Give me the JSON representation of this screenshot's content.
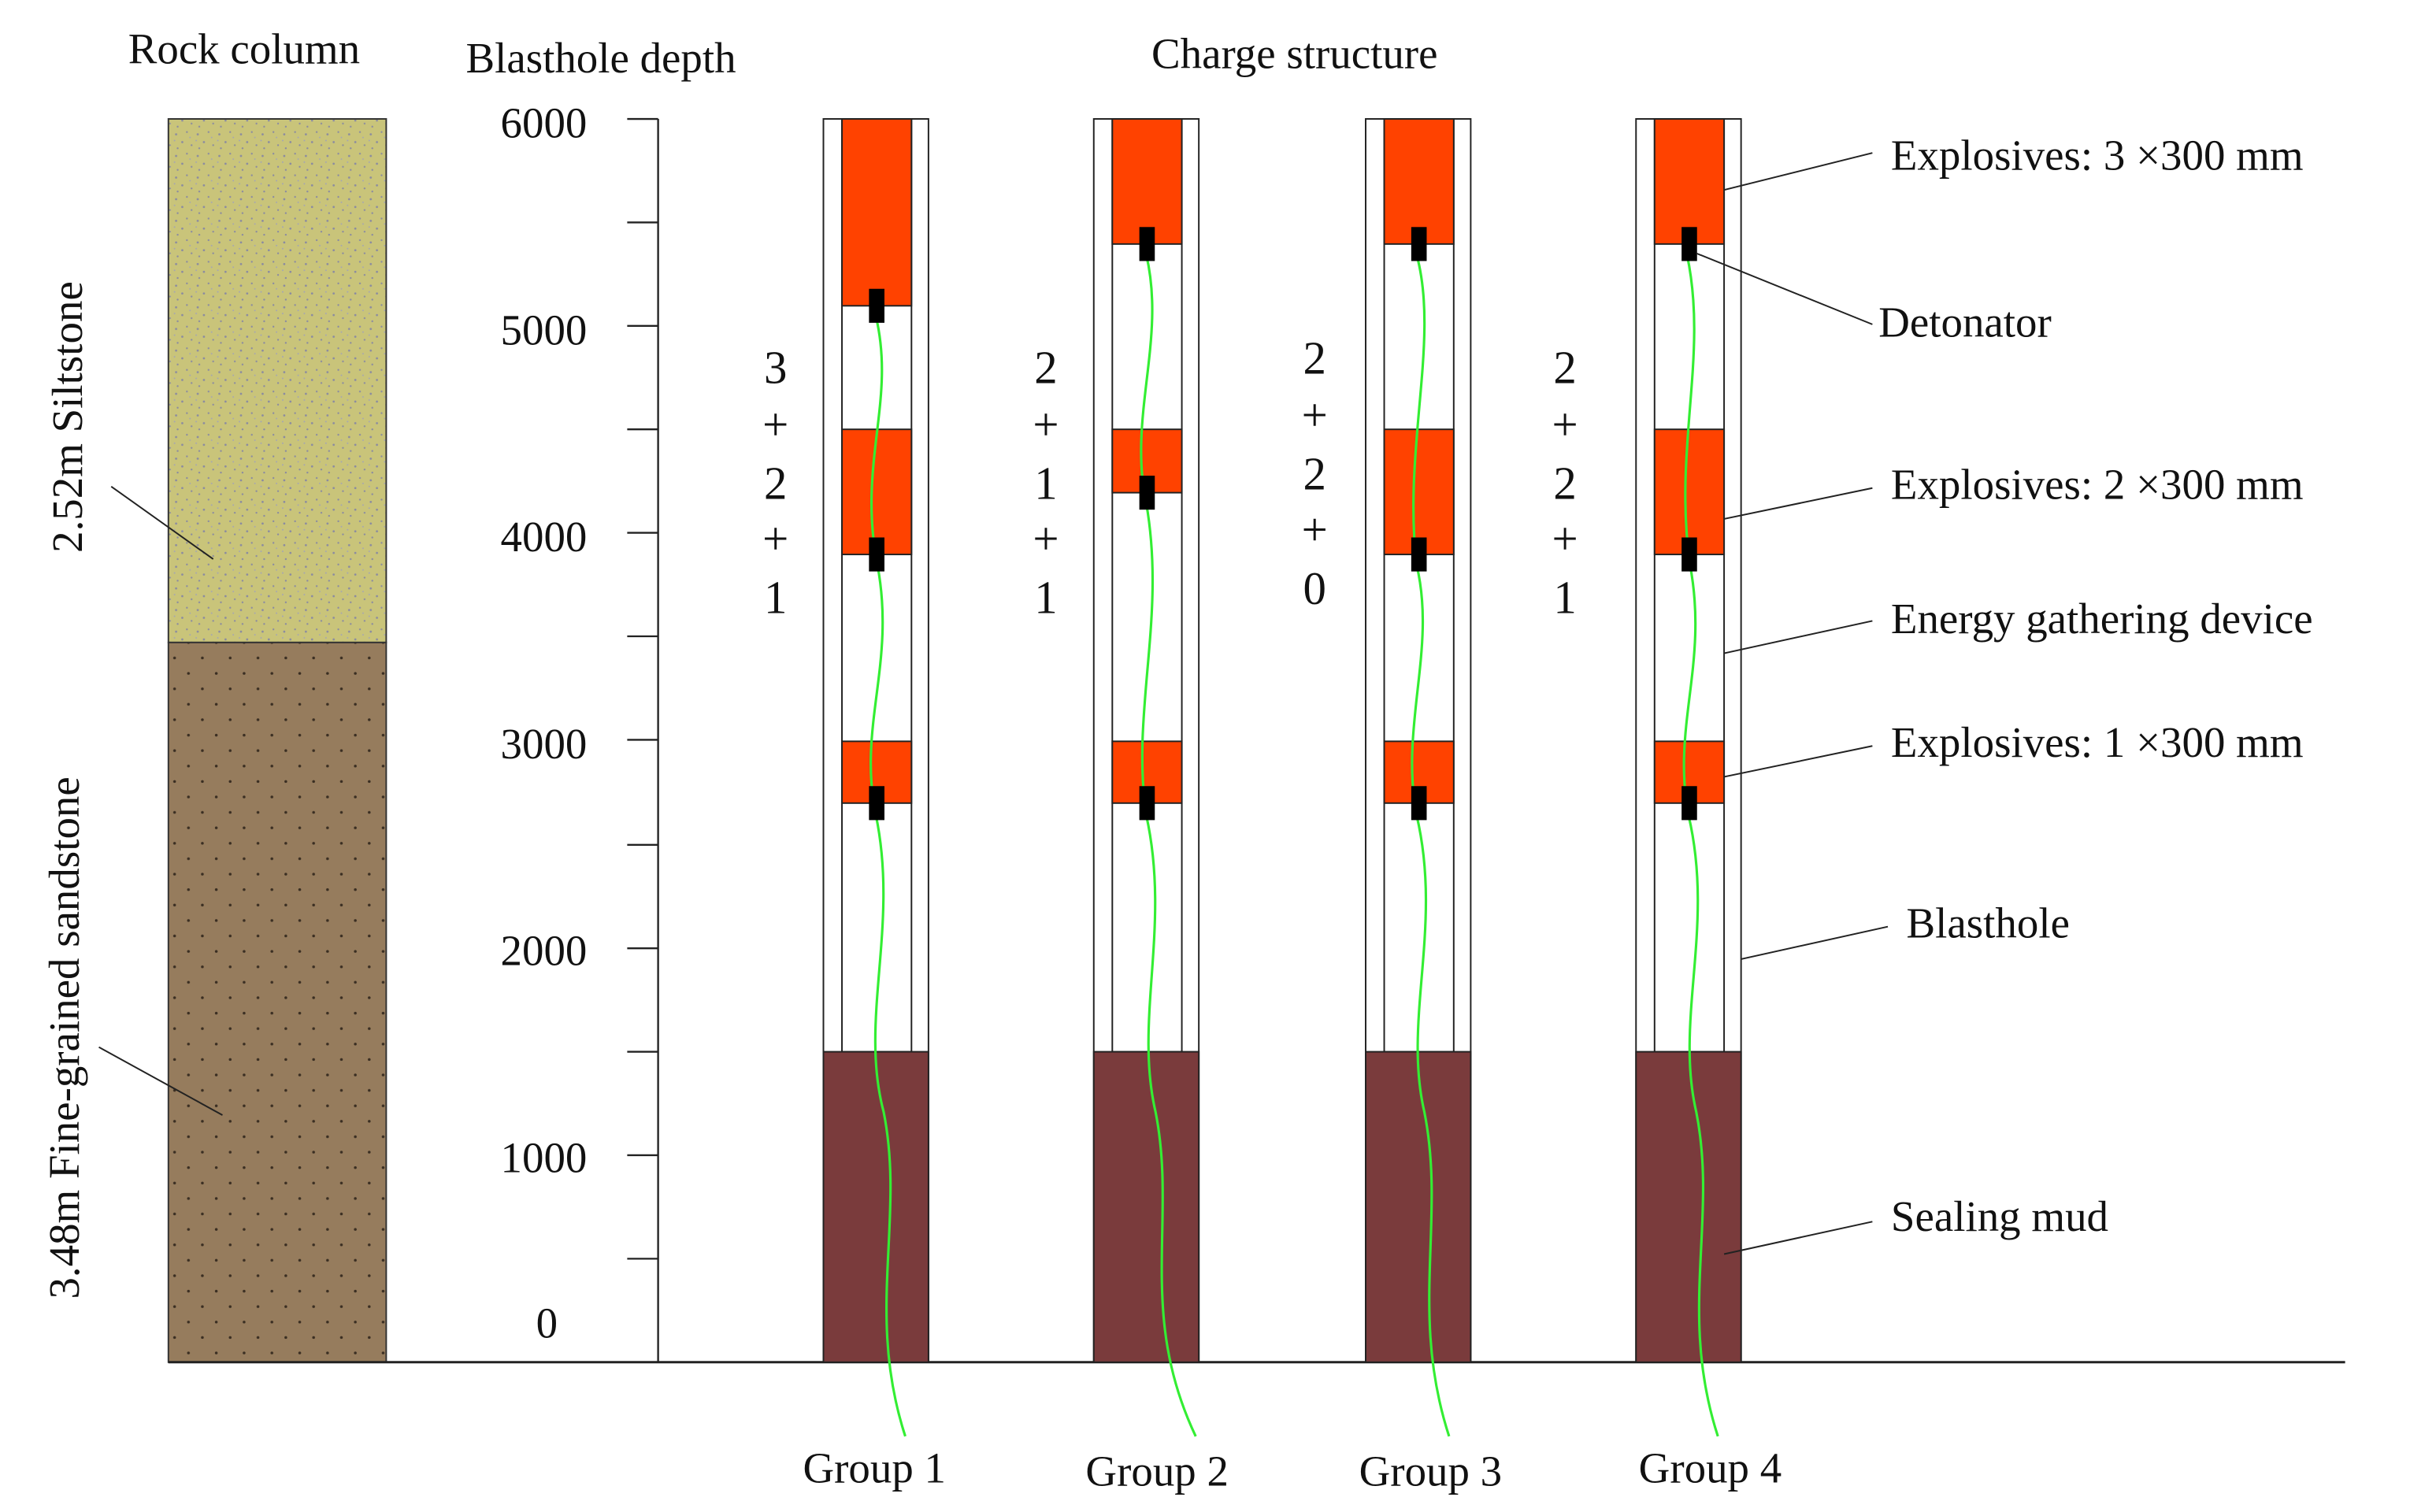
{
  "headings": {
    "rock_column": "Rock column",
    "blasthole_depth": "Blasthole depth",
    "charge_structure": "Charge structure"
  },
  "strata": [
    {
      "label": "2.52m  Siltstone",
      "color": "#c9c47a",
      "texture": "speckled"
    },
    {
      "label": "3.48m Fine-grained sandstone",
      "color": "#967c5d",
      "texture": "dotted"
    }
  ],
  "depth_axis": {
    "ticks": [
      "6000",
      "5000",
      "4000",
      "3000",
      "2000",
      "1000",
      "0"
    ]
  },
  "groups": [
    {
      "name": "Group 1",
      "ratio": [
        "3",
        "+",
        "2",
        "+",
        "1"
      ]
    },
    {
      "name": "Group 2",
      "ratio": [
        "2",
        "+",
        "1",
        "+",
        "1"
      ]
    },
    {
      "name": "Group 3",
      "ratio": [
        "2",
        "+",
        "2",
        "+",
        "0"
      ]
    },
    {
      "name": "Group 4",
      "ratio": [
        "2",
        "+",
        "2",
        "+",
        "1"
      ]
    }
  ],
  "legend": {
    "explosives_3": "Explosives: 3 ×300 mm",
    "detonator": "Detonator",
    "explosives_2": "Explosives: 2 ×300 mm",
    "energy_device": "Energy gathering device",
    "explosives_1": "Explosives: 1 ×300 mm",
    "blasthole": "Blasthole",
    "sealing_mud": "Sealing mud"
  },
  "colors": {
    "explosive": "#ff4200",
    "sealing_mud": "#7a3b3c",
    "detonator": "#000000",
    "wire": "#33ee33",
    "line": "#222222"
  }
}
